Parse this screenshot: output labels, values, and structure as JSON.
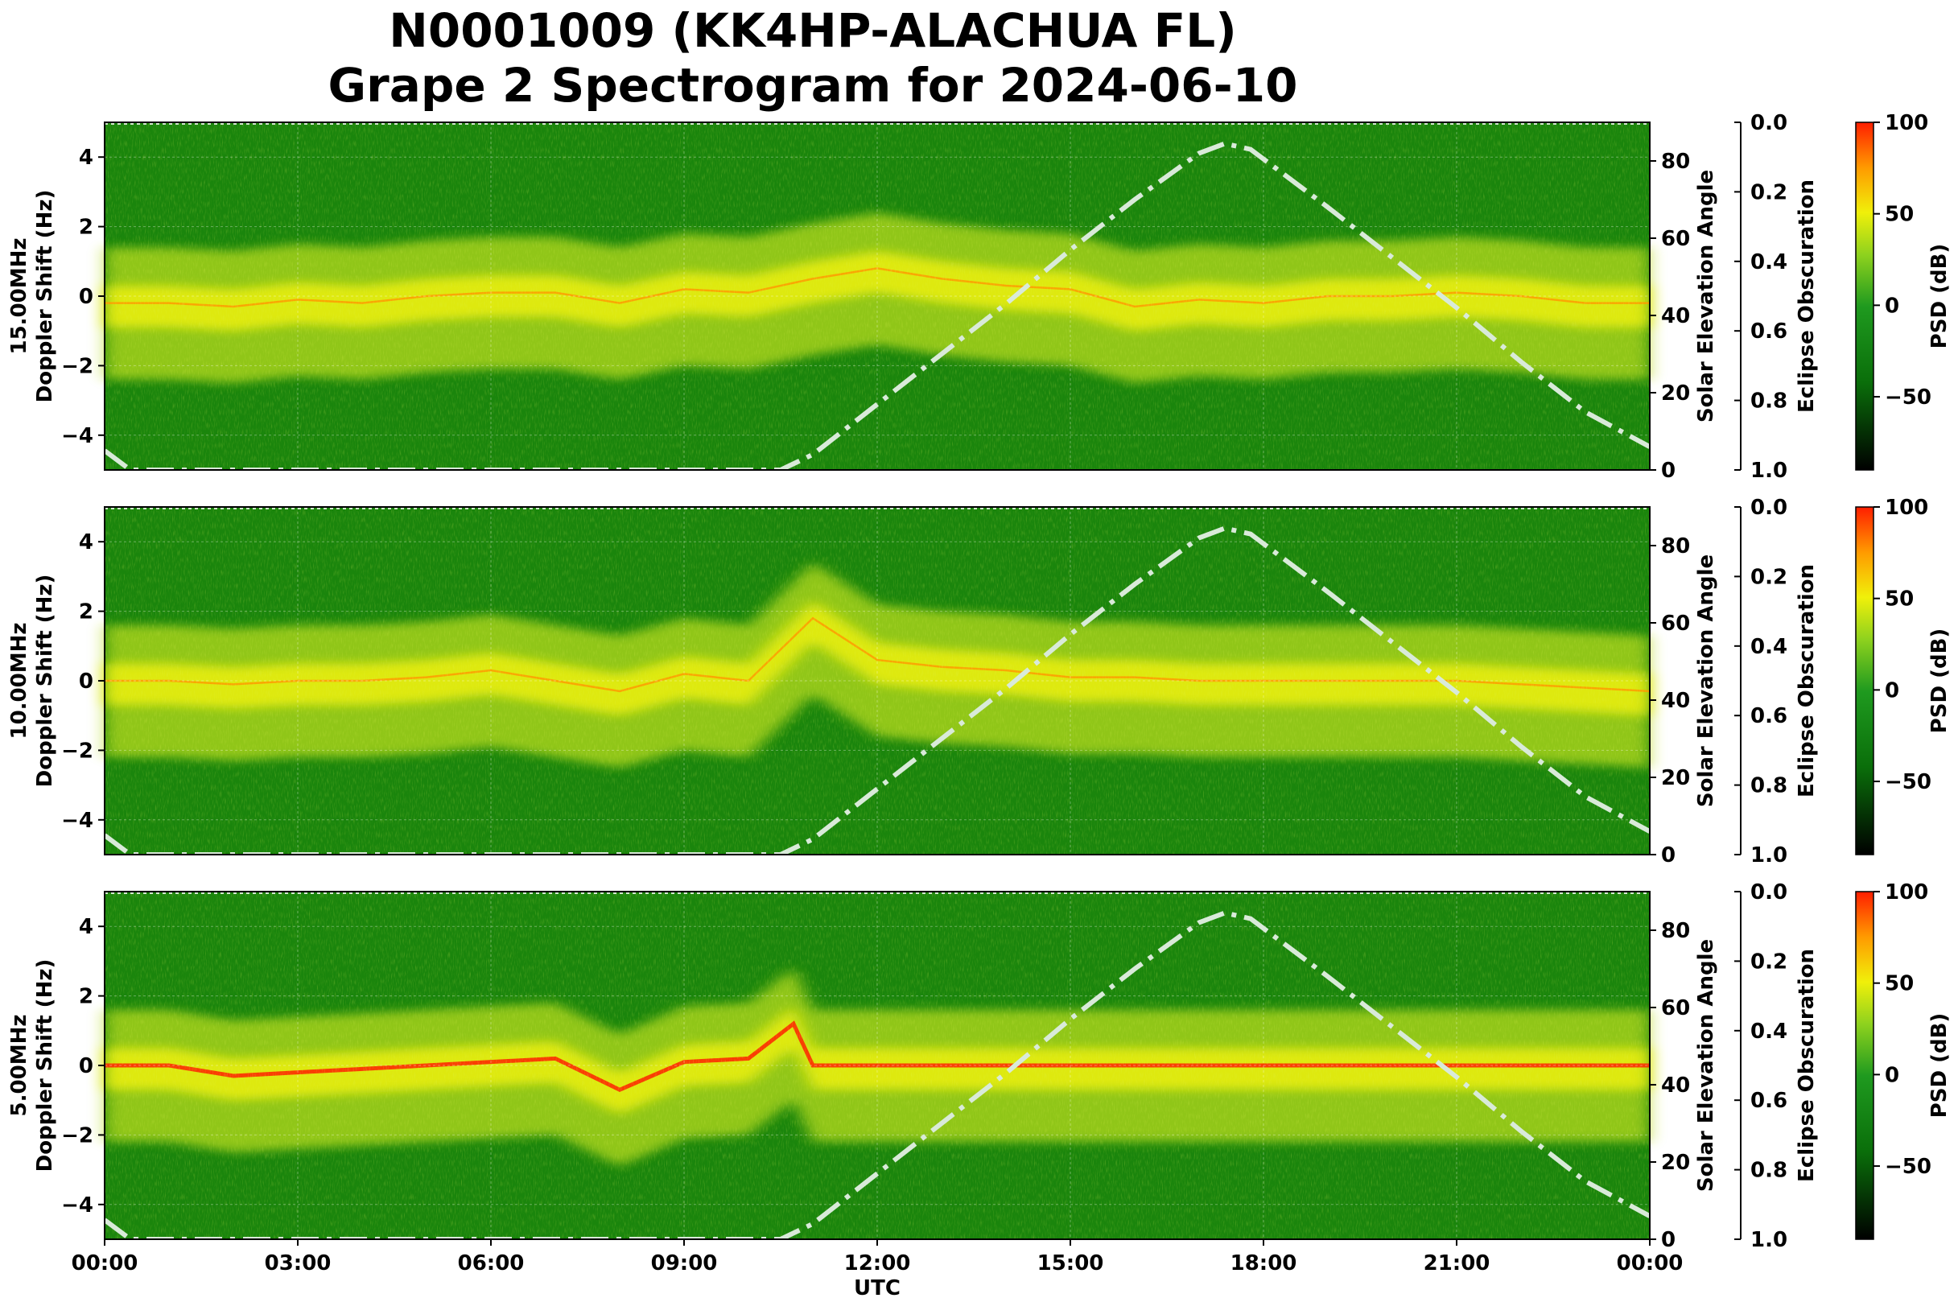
{
  "title": {
    "line1": "N0001009 (KK4HP-ALACHUA FL)",
    "line2": "Grape 2 Spectrogram for 2024-06-10"
  },
  "x_axis": {
    "label": "UTC",
    "ticks": [
      "00:00",
      "03:00",
      "06:00",
      "09:00",
      "12:00",
      "15:00",
      "18:00",
      "21:00",
      "00:00"
    ]
  },
  "y_axis_ticks": [
    "4",
    "2",
    "0",
    "−2",
    "−4"
  ],
  "elevation_axis": {
    "label": "Solar Elevation Angle",
    "ticks": [
      "80",
      "60",
      "40",
      "20",
      "0"
    ]
  },
  "eclipse_axis": {
    "label": "Eclipse Obscuration",
    "ticks": [
      "0.0",
      "0.2",
      "0.4",
      "0.6",
      "0.8",
      "1.0"
    ]
  },
  "colorbar": {
    "label": "PSD (dB)",
    "ticks": [
      "100",
      "50",
      "0",
      "−50"
    ]
  },
  "colors": {
    "background_green": "#0a7a0a",
    "mid_yellow_green": "#b8dc1e",
    "yellow": "#f2f20a",
    "red": "#ff1e00",
    "elevation_curve": "#d9ead9"
  },
  "chart_data": [
    {
      "type": "heatmap",
      "ylabel_line1": "15.00MHz",
      "ylabel_line2": "Doppler Shift (Hz)",
      "x_range_hours": [
        0,
        24
      ],
      "ylim": [
        -5,
        5
      ],
      "elevation_ylim": [
        0,
        90
      ],
      "psd_db_range": [
        -90,
        100
      ],
      "band": [
        [
          0,
          -0.2
        ],
        [
          1,
          -0.2
        ],
        [
          2,
          -0.3
        ],
        [
          3,
          -0.1
        ],
        [
          4,
          -0.2
        ],
        [
          5,
          0
        ],
        [
          6,
          0.1
        ],
        [
          7,
          0.1
        ],
        [
          8,
          -0.2
        ],
        [
          9,
          0.2
        ],
        [
          10,
          0.1
        ],
        [
          11,
          0.5
        ],
        [
          12,
          0.8
        ],
        [
          13,
          0.5
        ],
        [
          14,
          0.3
        ],
        [
          15,
          0.2
        ],
        [
          16,
          -0.3
        ],
        [
          17,
          -0.1
        ],
        [
          18,
          -0.2
        ],
        [
          19,
          0
        ],
        [
          20,
          0
        ],
        [
          21,
          0.1
        ],
        [
          22,
          0
        ],
        [
          23,
          -0.2
        ],
        [
          24,
          -0.2
        ]
      ]
    },
    {
      "type": "heatmap",
      "ylabel_line1": "10.00MHz",
      "ylabel_line2": "Doppler Shift (Hz)",
      "x_range_hours": [
        0,
        24
      ],
      "ylim": [
        -5,
        5
      ],
      "elevation_ylim": [
        0,
        90
      ],
      "psd_db_range": [
        -90,
        100
      ],
      "band": [
        [
          0,
          0
        ],
        [
          1,
          0
        ],
        [
          2,
          -0.1
        ],
        [
          3,
          0
        ],
        [
          4,
          0
        ],
        [
          5,
          0.1
        ],
        [
          6,
          0.3
        ],
        [
          7,
          0
        ],
        [
          8,
          -0.3
        ],
        [
          9,
          0.2
        ],
        [
          10,
          0
        ],
        [
          11,
          1.8
        ],
        [
          12,
          0.6
        ],
        [
          13,
          0.4
        ],
        [
          14,
          0.3
        ],
        [
          15,
          0.1
        ],
        [
          16,
          0.1
        ],
        [
          17,
          0
        ],
        [
          18,
          0
        ],
        [
          19,
          0
        ],
        [
          20,
          0
        ],
        [
          21,
          0
        ],
        [
          22,
          -0.1
        ],
        [
          23,
          -0.2
        ],
        [
          24,
          -0.3
        ]
      ]
    },
    {
      "type": "heatmap",
      "ylabel_line1": "5.00MHz",
      "ylabel_line2": "Doppler Shift (Hz)",
      "x_range_hours": [
        0,
        24
      ],
      "ylim": [
        -5,
        5
      ],
      "elevation_ylim": [
        0,
        90
      ],
      "psd_db_range": [
        -90,
        100
      ],
      "band": [
        [
          0,
          0
        ],
        [
          1,
          0
        ],
        [
          2,
          -0.3
        ],
        [
          3,
          -0.2
        ],
        [
          4,
          -0.1
        ],
        [
          5,
          0
        ],
        [
          6,
          0.1
        ],
        [
          7,
          0.2
        ],
        [
          8,
          -0.7
        ],
        [
          9,
          0.1
        ],
        [
          10,
          0.2
        ],
        [
          10.7,
          1.2
        ],
        [
          11,
          0
        ],
        [
          12,
          0
        ],
        [
          13,
          0
        ],
        [
          14,
          0
        ],
        [
          15,
          0
        ],
        [
          16,
          0
        ],
        [
          17,
          0
        ],
        [
          18,
          0
        ],
        [
          19,
          0
        ],
        [
          20,
          0
        ],
        [
          21,
          0
        ],
        [
          22,
          0
        ],
        [
          23,
          0
        ],
        [
          24,
          0
        ]
      ]
    }
  ],
  "solar_elevation": {
    "name": "",
    "points": [
      [
        0,
        5
      ],
      [
        0.4,
        0
      ],
      [
        10.5,
        0
      ],
      [
        11,
        4
      ],
      [
        12,
        17
      ],
      [
        13,
        30
      ],
      [
        14,
        43
      ],
      [
        15,
        57
      ],
      [
        16,
        70
      ],
      [
        17,
        82
      ],
      [
        17.4,
        84.5
      ],
      [
        17.8,
        83
      ],
      [
        18,
        80.5
      ],
      [
        19,
        68
      ],
      [
        20,
        55
      ],
      [
        21,
        42
      ],
      [
        22,
        28
      ],
      [
        23,
        15
      ],
      [
        24,
        6
      ]
    ]
  }
}
